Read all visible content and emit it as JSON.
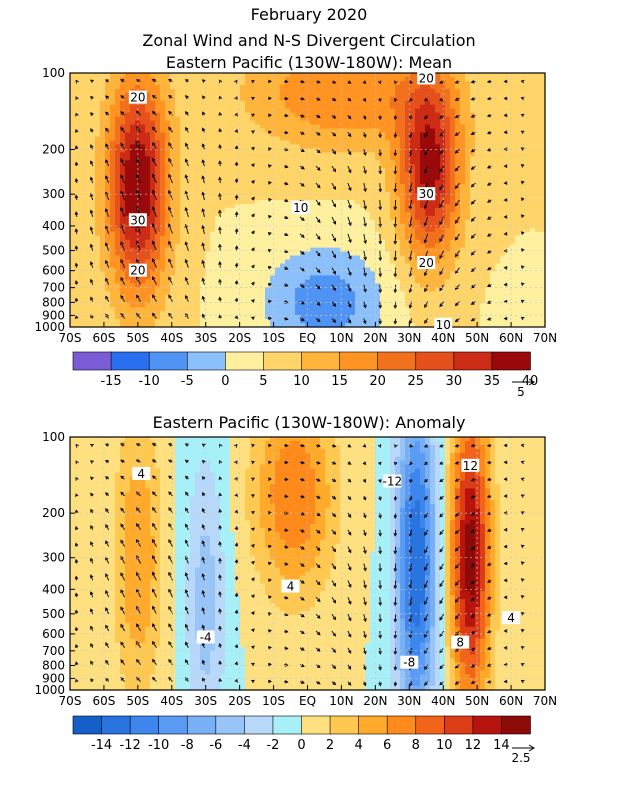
{
  "header": {
    "line1": "February 2020",
    "line2": "Zonal Wind and N-S Divergent Circulation"
  },
  "chart_data": [
    {
      "type": "heatmap",
      "title": "Eastern Pacific (130W-180W): Mean",
      "x_tick_labels": [
        "70S",
        "60S",
        "50S",
        "40S",
        "30S",
        "20S",
        "10S",
        "EQ",
        "10N",
        "20N",
        "30N",
        "40N",
        "50N",
        "60N",
        "70N"
      ],
      "y_tick_labels": [
        "100",
        "200",
        "300",
        "400",
        "500",
        "600",
        "700",
        "800",
        "900",
        "1000"
      ],
      "y_axis_scale": "log-pressure",
      "ylim": [
        1000,
        100
      ],
      "contour_labels": [
        "20",
        "30",
        "20",
        "10",
        "20",
        "30",
        "20",
        "10"
      ],
      "colorbar": {
        "labels": [
          "-15",
          "-10",
          "-5",
          "0",
          "5",
          "10",
          "15",
          "20",
          "25",
          "30",
          "35",
          "40"
        ],
        "colors": [
          "#7a5cd6",
          "#2a6ff0",
          "#4f94f5",
          "#8cc0fa",
          "#fff0a0",
          "#ffd56a",
          "#ffb43c",
          "#ff9422",
          "#f2711c",
          "#e6501c",
          "#cc2b15",
          "#9a0a0a"
        ]
      },
      "vector_reference": "5",
      "features": [
        {
          "name": "southern jet core",
          "lat": -50,
          "level": 300,
          "value": 35
        },
        {
          "name": "northern jet core",
          "lat": 35,
          "level": 250,
          "value": 35
        },
        {
          "name": "tropical easterlies",
          "lat": 5,
          "level": 800,
          "value": -7
        }
      ]
    },
    {
      "type": "heatmap",
      "title": "Eastern Pacific (130W-180W): Anomaly",
      "x_tick_labels": [
        "70S",
        "60S",
        "50S",
        "40S",
        "30S",
        "20S",
        "10S",
        "EQ",
        "10N",
        "20N",
        "30N",
        "40N",
        "50N",
        "60N",
        "70N"
      ],
      "y_tick_labels": [
        "100",
        "200",
        "300",
        "400",
        "500",
        "600",
        "700",
        "800",
        "900",
        "1000"
      ],
      "y_axis_scale": "log-pressure",
      "ylim": [
        1000,
        100
      ],
      "contour_labels": [
        "4",
        "-4",
        "4",
        "-12",
        "-8",
        "12",
        "8",
        "4"
      ],
      "colorbar": {
        "labels": [
          "-14",
          "-12",
          "-10",
          "-8",
          "-6",
          "-4",
          "-2",
          "0",
          "2",
          "4",
          "6",
          "8",
          "10",
          "12",
          "14"
        ],
        "colors": [
          "#1460c8",
          "#2a74e0",
          "#3c86ee",
          "#5a9cf4",
          "#78b0f6",
          "#98c4f8",
          "#b8d8fa",
          "#a8f0f8",
          "#ffe080",
          "#ffc850",
          "#ffaa2a",
          "#ff8a1c",
          "#f2641a",
          "#dc3c16",
          "#b8140e",
          "#8c0a08"
        ]
      },
      "vector_reference": "2.5",
      "features": [
        {
          "name": "positive anomaly",
          "lat": -50,
          "level": 300,
          "value": 5
        },
        {
          "name": "negative anomaly",
          "lat": -30,
          "level": 450,
          "value": -5
        },
        {
          "name": "positive anomaly",
          "lat": -5,
          "level": 150,
          "value": 7
        },
        {
          "name": "negative anomaly",
          "lat": 32,
          "level": 300,
          "value": -13
        },
        {
          "name": "positive anomaly",
          "lat": 48,
          "level": 300,
          "value": 14
        }
      ]
    }
  ]
}
